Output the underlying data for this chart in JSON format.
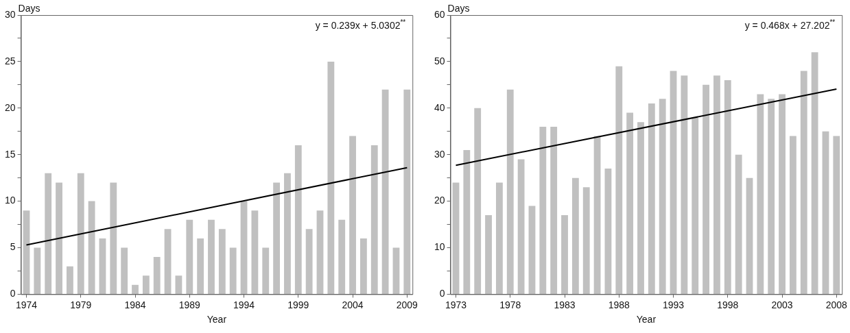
{
  "chart_data": [
    {
      "type": "bar",
      "xlabel": "Year",
      "ylabel": "Days",
      "annotations": [
        "y = 0.239x + 5.0302$^{**}$"
      ],
      "categories": [
        "1974",
        null,
        null,
        null,
        null,
        "1979",
        null,
        null,
        null,
        null,
        "1984",
        null,
        null,
        null,
        null,
        "1989",
        null,
        null,
        null,
        null,
        "1994",
        null,
        null,
        null,
        null,
        "1999",
        null,
        null,
        null,
        null,
        "2004",
        null,
        null,
        null,
        null,
        "2009"
      ],
      "series": [
        {
          "color": "#c0c0c0",
          "values": [
            9,
            5,
            13,
            12,
            3,
            13,
            10,
            6,
            12,
            5,
            1,
            2,
            4,
            7,
            2,
            8,
            6,
            8,
            7,
            5,
            10,
            9,
            5,
            12,
            13,
            16,
            7,
            9,
            25,
            8,
            17,
            6,
            16,
            22,
            5,
            22
          ]
        },
        {
          "type": "line",
          "color": "#000000",
          "values": [
            5.3,
            null,
            null,
            null,
            null,
            null,
            null,
            null,
            null,
            null,
            null,
            null,
            null,
            null,
            null,
            null,
            null,
            null,
            null,
            null,
            null,
            null,
            null,
            null,
            null,
            null,
            null,
            null,
            null,
            null,
            null,
            null,
            null,
            null,
            null,
            13.6
          ]
        }
      ],
      "ylim": [
        0,
        30
      ],
      "yticks": [
        0,
        {
          "value": 2.5,
          "label": null
        },
        5,
        {
          "value": 7.5,
          "label": null
        },
        10,
        {
          "value": 12.5,
          "label": null
        },
        15,
        {
          "value": 17.5,
          "label": null
        },
        20,
        {
          "value": 22.5,
          "label": null
        },
        25,
        {
          "value": 27.5,
          "label": null
        },
        30
      ],
      "grid": false,
      "legend": false
    },
    {
      "type": "bar",
      "xlabel": "Year",
      "ylabel": "Days",
      "annotations": [
        "y = 0.468x + 27.202$^{**}$"
      ],
      "categories": [
        "1973",
        null,
        null,
        null,
        null,
        "1978",
        null,
        null,
        null,
        null,
        "1983",
        null,
        null,
        null,
        null,
        "1988",
        null,
        null,
        null,
        null,
        "1993",
        null,
        null,
        null,
        null,
        "1998",
        null,
        null,
        null,
        null,
        "2003",
        null,
        null,
        null,
        null,
        "2008"
      ],
      "series": [
        {
          "color": "#c0c0c0",
          "values": [
            24,
            31,
            40,
            17,
            24,
            44,
            29,
            19,
            36,
            36,
            17,
            25,
            23,
            34,
            27,
            49,
            39,
            37,
            41,
            42,
            48,
            47,
            38,
            45,
            47,
            46,
            30,
            25,
            43,
            42,
            43,
            34,
            48,
            52,
            35,
            34
          ]
        },
        {
          "type": "line",
          "color": "#000000",
          "values": [
            27.7,
            null,
            null,
            null,
            null,
            null,
            null,
            null,
            null,
            null,
            null,
            null,
            null,
            null,
            null,
            null,
            null,
            null,
            null,
            null,
            null,
            null,
            null,
            null,
            null,
            null,
            null,
            null,
            null,
            null,
            null,
            null,
            null,
            null,
            null,
            44.1
          ]
        }
      ],
      "ylim": [
        0,
        60
      ],
      "yticks": [
        0,
        {
          "value": 5,
          "label": null
        },
        10,
        {
          "value": 15,
          "label": null
        },
        20,
        {
          "value": 25,
          "label": null
        },
        30,
        {
          "value": 35,
          "label": null
        },
        40,
        {
          "value": 45,
          "label": null
        },
        50,
        {
          "value": 55,
          "label": null
        },
        60
      ],
      "grid": false,
      "legend": false
    }
  ]
}
